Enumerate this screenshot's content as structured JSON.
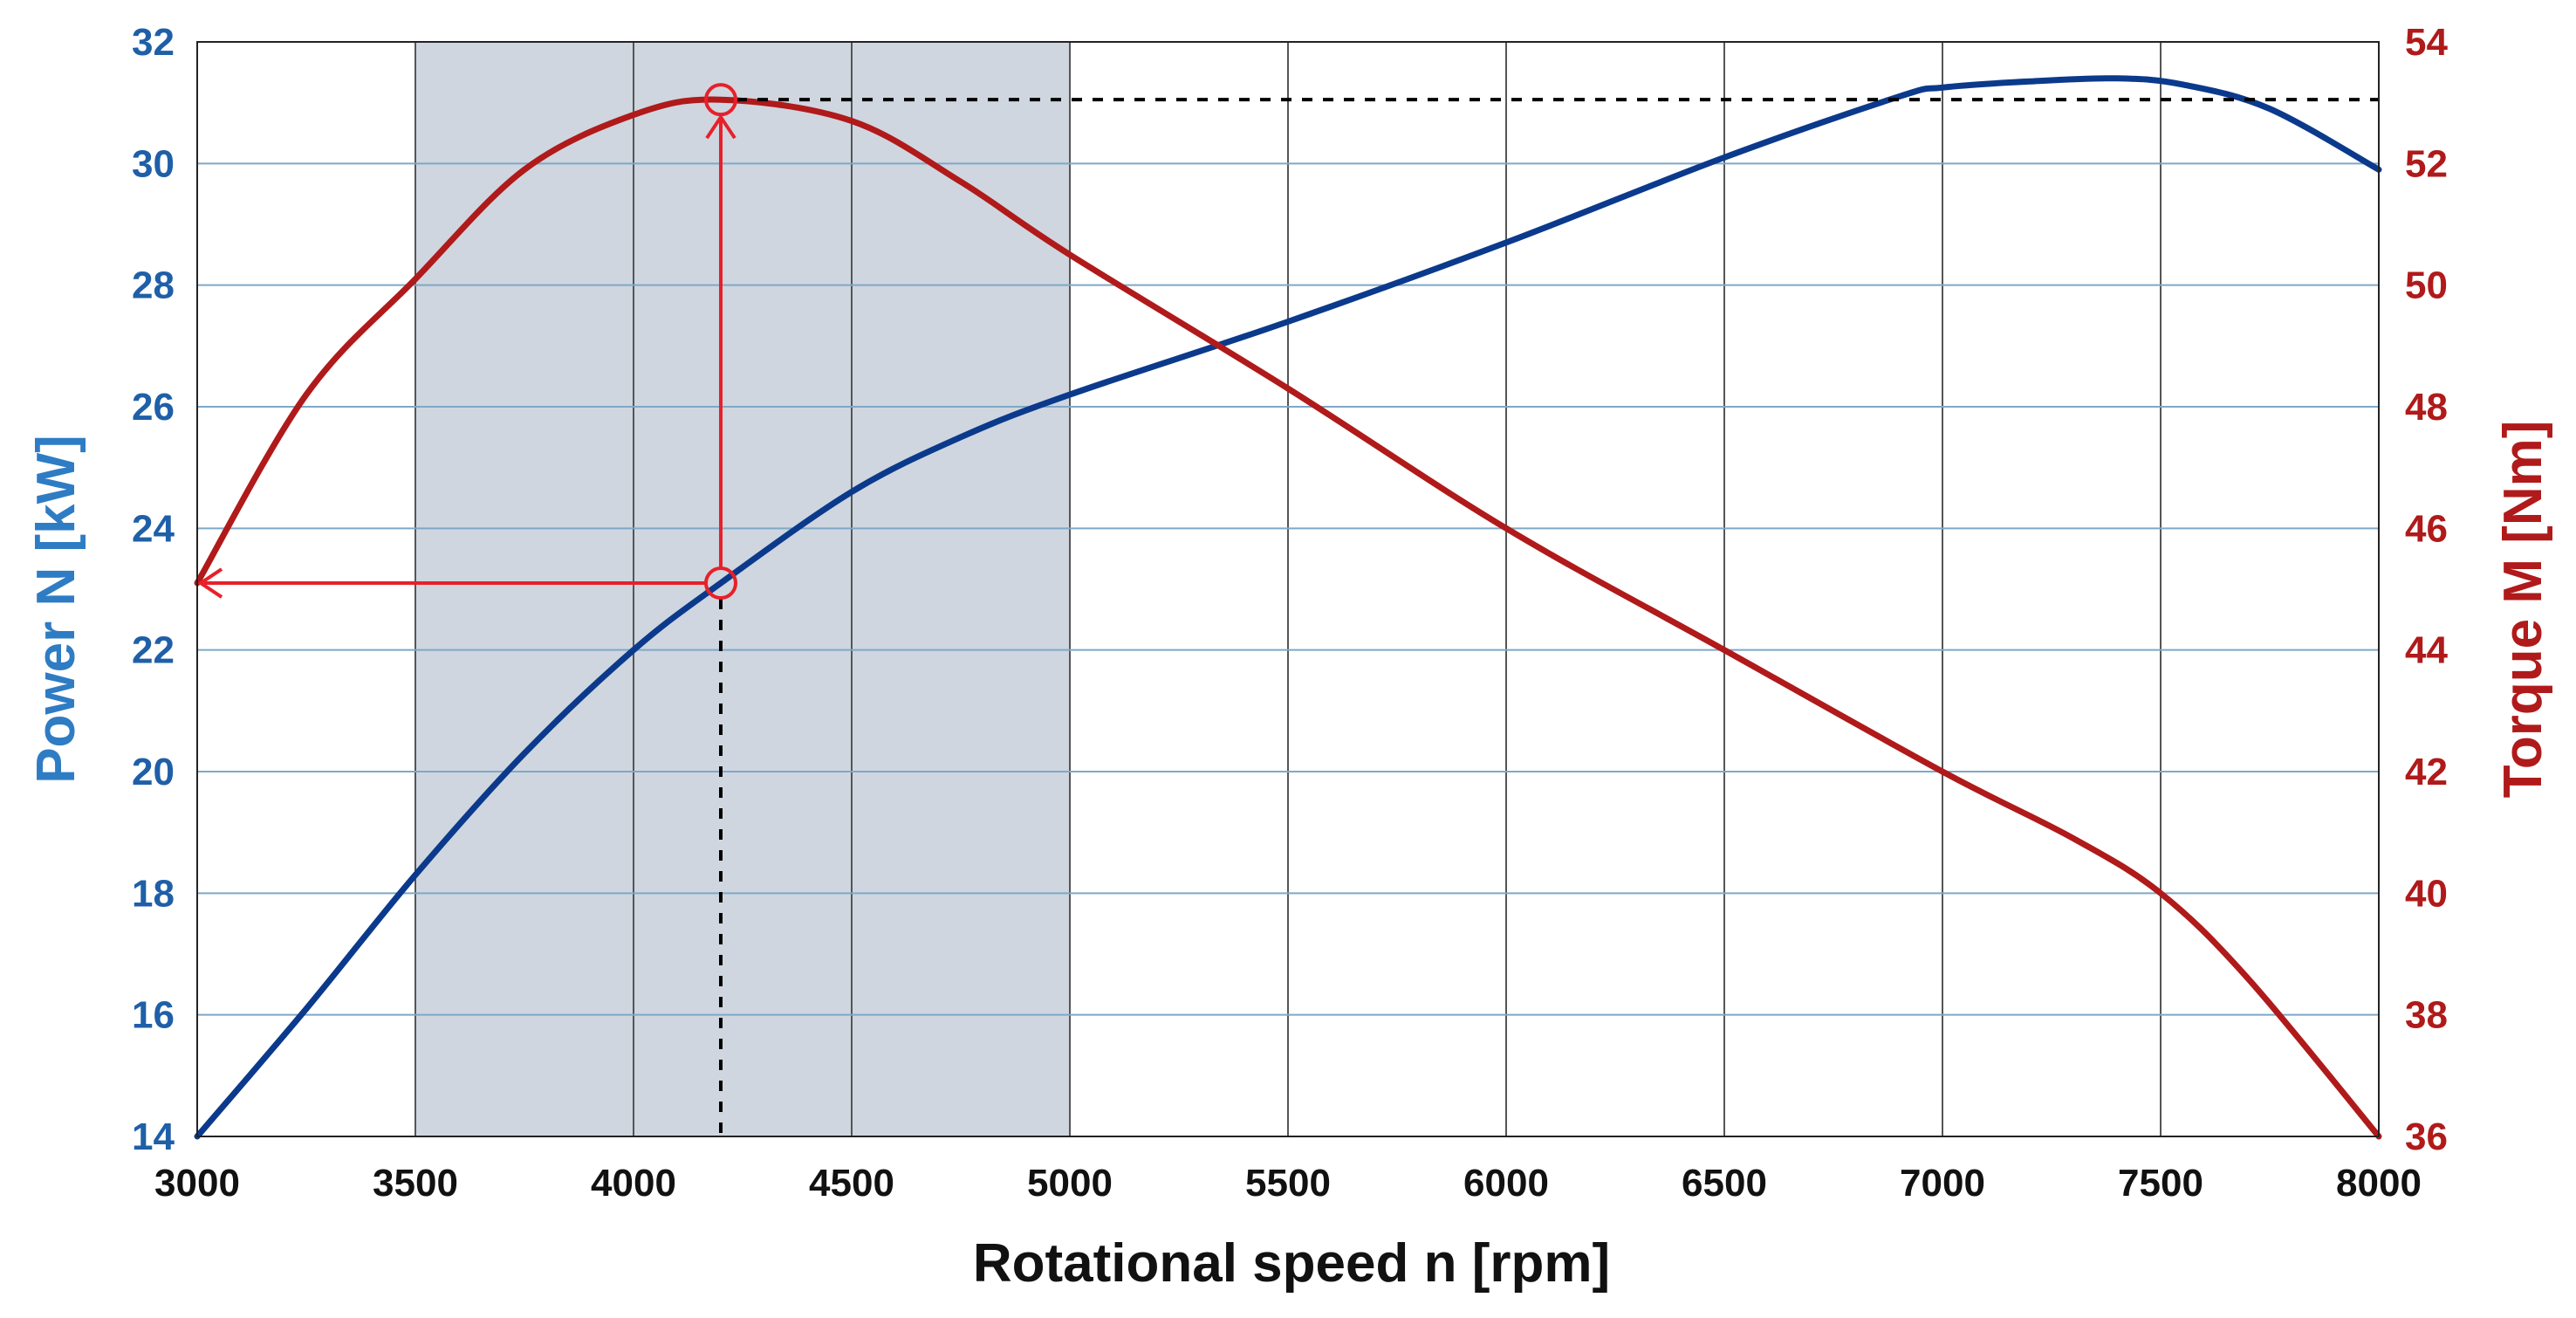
{
  "chart_data": {
    "type": "line",
    "title": "",
    "xlabel": "Rotational speed n [rpm]",
    "ylabel_left": "Power N [kW]",
    "ylabel_right": "Torque M [Nm]",
    "xlim": [
      3000,
      8000
    ],
    "ylim_left": [
      14,
      32
    ],
    "ylim_right": [
      36,
      54
    ],
    "x_ticks": [
      "3000",
      "3500",
      "4000",
      "4500",
      "5000",
      "5500",
      "6000",
      "6500",
      "7000",
      "7500",
      "8000"
    ],
    "y_left_ticks": [
      "14",
      "16",
      "18",
      "20",
      "22",
      "24",
      "26",
      "28",
      "30",
      "32"
    ],
    "y_right_ticks": [
      "36",
      "38",
      "40",
      "42",
      "44",
      "46",
      "48",
      "50",
      "52",
      "54"
    ],
    "grid": true,
    "shaded_range": [
      3500,
      5000
    ],
    "series": [
      {
        "name": "Power N",
        "axis": "left",
        "color": "#0b3a8c",
        "x": [
          3000,
          3250,
          3500,
          3750,
          4000,
          4200,
          4500,
          4750,
          5000,
          5500,
          6000,
          6500,
          6900,
          7000,
          7200,
          7400,
          7550,
          7750,
          8000
        ],
        "y": [
          14.0,
          16.1,
          18.3,
          20.3,
          22.0,
          23.1,
          24.6,
          25.5,
          26.2,
          27.4,
          28.7,
          30.1,
          31.1,
          31.25,
          31.35,
          31.4,
          31.3,
          30.9,
          29.9
        ]
      },
      {
        "name": "Torque M",
        "axis": "right",
        "color": "#b01a1a",
        "x": [
          3000,
          3250,
          3500,
          3750,
          4000,
          4200,
          4500,
          4750,
          5000,
          5500,
          6000,
          6500,
          7000,
          7300,
          7500,
          7700,
          8000
        ],
        "y": [
          45.1,
          48.2,
          50.1,
          51.9,
          52.8,
          53.05,
          52.7,
          51.7,
          50.5,
          48.3,
          46.0,
          44.0,
          42.0,
          40.9,
          40.0,
          38.6,
          36.0
        ]
      }
    ],
    "annotation": {
      "speed": 4200,
      "power": 23.1,
      "torque_max": 53.05
    }
  }
}
